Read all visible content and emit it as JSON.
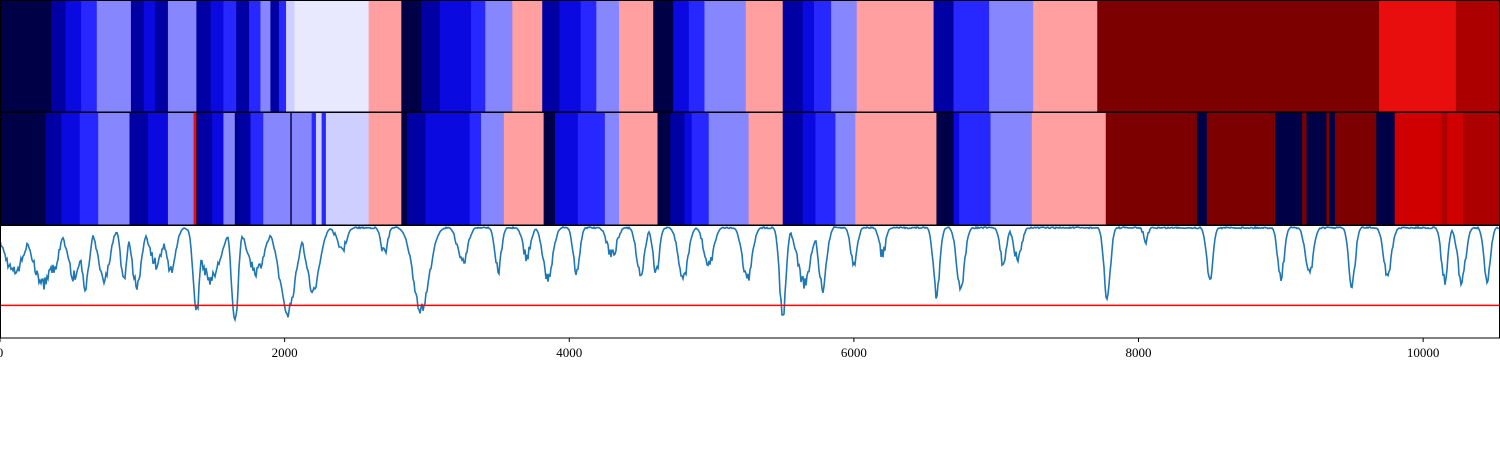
{
  "chart_data": [
    {
      "type": "heatmap",
      "name": "segmentation-strip-top",
      "xlim": [
        0,
        10540
      ],
      "colormap": "bwr",
      "clim": [
        0,
        14
      ],
      "segments": [
        [
          0,
          0
        ],
        [
          360,
          1
        ],
        [
          460,
          2
        ],
        [
          570,
          3
        ],
        [
          680,
          4
        ],
        [
          920,
          1
        ],
        [
          1010,
          2
        ],
        [
          1090,
          1
        ],
        [
          1180,
          4
        ],
        [
          1380,
          1
        ],
        [
          1480,
          2
        ],
        [
          1570,
          3
        ],
        [
          1660,
          1
        ],
        [
          1750,
          3
        ],
        [
          1830,
          4
        ],
        [
          1900,
          1
        ],
        [
          1960,
          3
        ],
        [
          2010,
          5
        ],
        [
          2070,
          6
        ],
        [
          2590,
          9
        ],
        [
          2820,
          0
        ],
        [
          2960,
          1
        ],
        [
          3090,
          2
        ],
        [
          3310,
          3
        ],
        [
          3410,
          4
        ],
        [
          3600,
          9
        ],
        [
          3810,
          1
        ],
        [
          3930,
          2
        ],
        [
          4080,
          3
        ],
        [
          4190,
          4
        ],
        [
          4350,
          9
        ],
        [
          4590,
          0
        ],
        [
          4730,
          2
        ],
        [
          4840,
          3
        ],
        [
          4950,
          4
        ],
        [
          5240,
          9
        ],
        [
          5500,
          1
        ],
        [
          5640,
          2
        ],
        [
          5720,
          3
        ],
        [
          5840,
          4
        ],
        [
          6020,
          9
        ],
        [
          6560,
          1
        ],
        [
          6700,
          3
        ],
        [
          6950,
          4
        ],
        [
          7260,
          9
        ],
        [
          7710,
          14
        ],
        [
          9690,
          11
        ],
        [
          10230,
          13
        ]
      ]
    },
    {
      "type": "heatmap",
      "name": "segmentation-strip-bottom",
      "xlim": [
        0,
        10540
      ],
      "colormap": "bwr",
      "clim": [
        0,
        14
      ],
      "segments": [
        [
          0,
          0
        ],
        [
          320,
          1
        ],
        [
          430,
          2
        ],
        [
          560,
          3
        ],
        [
          690,
          4
        ],
        [
          910,
          1
        ],
        [
          1040,
          2
        ],
        [
          1180,
          4
        ],
        [
          1360,
          11
        ],
        [
          1380,
          0
        ],
        [
          1390,
          1
        ],
        [
          1490,
          2
        ],
        [
          1570,
          4
        ],
        [
          1650,
          0
        ],
        [
          1660,
          1
        ],
        [
          1760,
          3
        ],
        [
          1850,
          4
        ],
        [
          2040,
          0
        ],
        [
          2050,
          4
        ],
        [
          2190,
          3
        ],
        [
          2220,
          5
        ],
        [
          2260,
          3
        ],
        [
          2290,
          5
        ],
        [
          2590,
          9
        ],
        [
          2820,
          0
        ],
        [
          2860,
          1
        ],
        [
          2990,
          2
        ],
        [
          3300,
          3
        ],
        [
          3380,
          4
        ],
        [
          3540,
          9
        ],
        [
          3820,
          0
        ],
        [
          3900,
          2
        ],
        [
          4060,
          3
        ],
        [
          4250,
          4
        ],
        [
          4350,
          9
        ],
        [
          4620,
          0
        ],
        [
          4710,
          1
        ],
        [
          4810,
          2
        ],
        [
          4860,
          3
        ],
        [
          4980,
          4
        ],
        [
          5260,
          9
        ],
        [
          5500,
          1
        ],
        [
          5640,
          2
        ],
        [
          5730,
          3
        ],
        [
          5870,
          4
        ],
        [
          6010,
          9
        ],
        [
          6580,
          0
        ],
        [
          6700,
          2
        ],
        [
          6740,
          3
        ],
        [
          6960,
          4
        ],
        [
          7250,
          9
        ],
        [
          7770,
          14
        ],
        [
          8410,
          0
        ],
        [
          8480,
          14
        ],
        [
          8960,
          0
        ],
        [
          9150,
          14
        ],
        [
          9180,
          0
        ],
        [
          9320,
          14
        ],
        [
          9340,
          0
        ],
        [
          9380,
          14
        ],
        [
          9670,
          0
        ],
        [
          9800,
          12
        ],
        [
          10130,
          13
        ],
        [
          10170,
          12
        ],
        [
          10280,
          13
        ]
      ]
    },
    {
      "type": "line",
      "name": "signal-trace",
      "xlim": [
        0,
        10540
      ],
      "ylim": [
        -0.1,
        1.0
      ],
      "threshold": 0.22,
      "line_color": "#1f77b4",
      "threshold_color": "#ff0000",
      "xticks": [
        0,
        2000,
        4000,
        6000,
        8000,
        10000
      ],
      "xtick_labels": [
        "0",
        "2000",
        "4000",
        "6000",
        "8000",
        "10000"
      ],
      "dips": [
        [
          100,
          120,
          0.55
        ],
        [
          300,
          120,
          0.43
        ],
        [
          380,
          60,
          0.55
        ],
        [
          520,
          80,
          0.51
        ],
        [
          600,
          50,
          0.42
        ],
        [
          730,
          70,
          0.45
        ],
        [
          870,
          40,
          0.48
        ],
        [
          960,
          60,
          0.43
        ],
        [
          1100,
          80,
          0.63
        ],
        [
          1200,
          60,
          0.56
        ],
        [
          1380,
          40,
          0.14
        ],
        [
          1480,
          120,
          0.48
        ],
        [
          1650,
          40,
          0.02
        ],
        [
          1800,
          100,
          0.56
        ],
        [
          2020,
          100,
          0.16
        ],
        [
          2200,
          80,
          0.35
        ],
        [
          2400,
          60,
          0.78
        ],
        [
          2700,
          40,
          0.74
        ],
        [
          2960,
          100,
          0.18
        ],
        [
          3250,
          60,
          0.62
        ],
        [
          3500,
          40,
          0.56
        ],
        [
          3700,
          50,
          0.71
        ],
        [
          3850,
          60,
          0.48
        ],
        [
          4050,
          40,
          0.53
        ],
        [
          4300,
          60,
          0.71
        ],
        [
          4500,
          50,
          0.54
        ],
        [
          4610,
          40,
          0.55
        ],
        [
          4800,
          60,
          0.49
        ],
        [
          4980,
          60,
          0.62
        ],
        [
          5250,
          60,
          0.47
        ],
        [
          5500,
          40,
          0.11
        ],
        [
          5650,
          80,
          0.44
        ],
        [
          5780,
          50,
          0.4
        ],
        [
          6000,
          40,
          0.6
        ],
        [
          6200,
          40,
          0.72
        ],
        [
          6580,
          40,
          0.33
        ],
        [
          6750,
          50,
          0.4
        ],
        [
          7050,
          40,
          0.63
        ],
        [
          7150,
          50,
          0.68
        ],
        [
          7780,
          40,
          0.3
        ],
        [
          8050,
          30,
          0.86
        ],
        [
          8500,
          40,
          0.48
        ],
        [
          9000,
          40,
          0.49
        ],
        [
          9200,
          50,
          0.55
        ],
        [
          9500,
          40,
          0.42
        ],
        [
          9750,
          50,
          0.52
        ],
        [
          10150,
          40,
          0.47
        ],
        [
          10270,
          50,
          0.47
        ],
        [
          10450,
          40,
          0.45
        ]
      ]
    }
  ]
}
